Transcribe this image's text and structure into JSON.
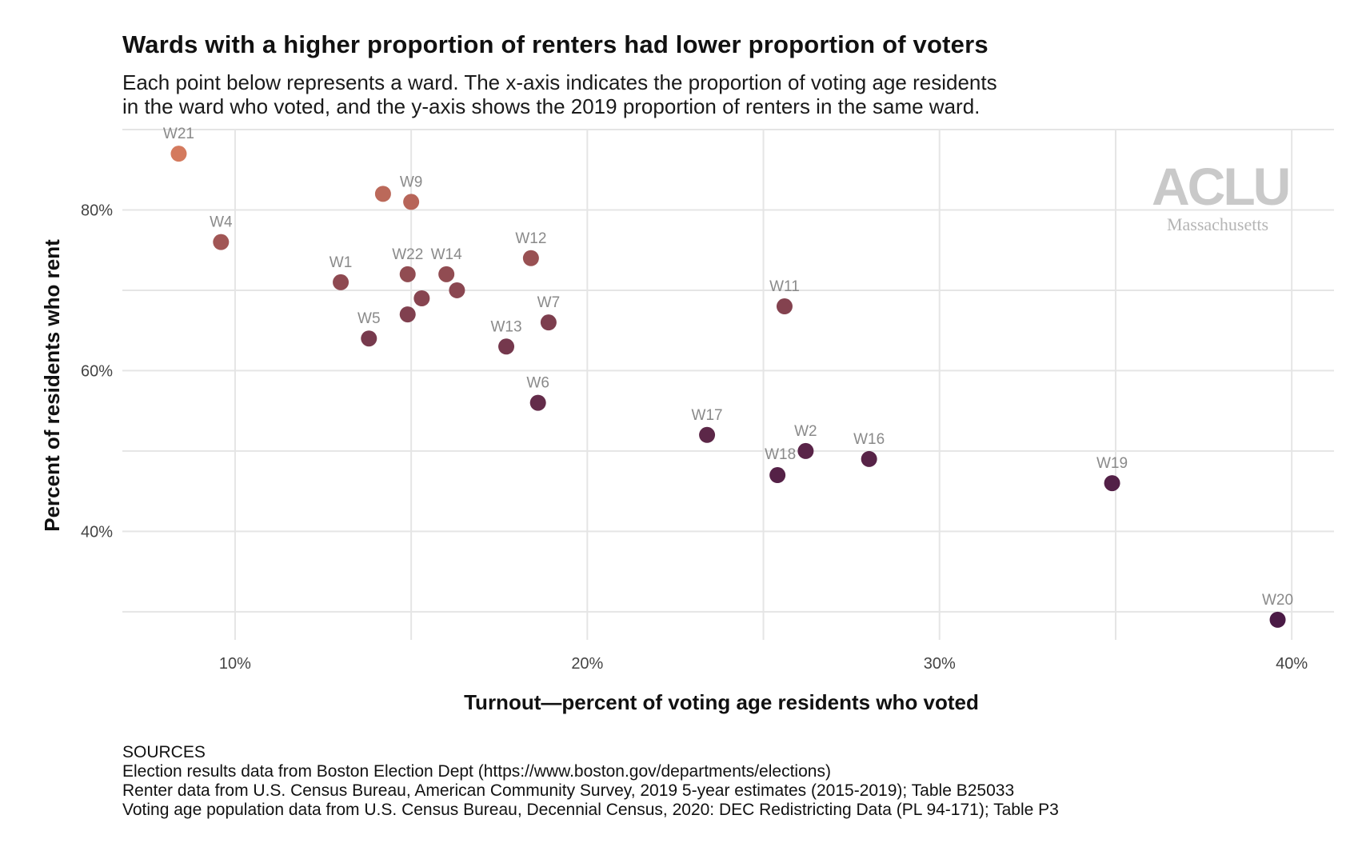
{
  "title": "Wards with a higher proportion of renters had lower proportion of voters",
  "subtitle_lines": [
    "Each point below represents a ward. The x-axis indicates the proportion of voting age residents",
    "in the ward who voted, and the y-axis shows the 2019 proportion of renters in the same ward."
  ],
  "logo": {
    "mark": "ACLU",
    "state": "Massachusetts"
  },
  "sources": {
    "heading": "SOURCES",
    "lines": [
      "Election results data from Boston Election Dept (https://www.boston.gov/departments/elections)",
      "Renter data from U.S. Census Bureau, American Community Survey, 2019 5-year estimates (2015-2019); Table B25033",
      "Voting age population data from U.S. Census Bureau, Decennial Census, 2020: DEC Redistricting Data (PL 94-171); Table P3"
    ]
  },
  "colors": {
    "low_renters": "#4a1a45",
    "high_renters": "#d47a5e",
    "grid": "#e5e5e5",
    "label": "#8a8a8a"
  },
  "chart_data": {
    "type": "scatter",
    "xlabel": "Turnout—percent of voting age residents who voted",
    "ylabel": "Percent of residents who rent",
    "xlim": [
      6.8,
      41.2
    ],
    "ylim": [
      26.5,
      90
    ],
    "x_ticks": [
      10,
      20,
      30,
      40
    ],
    "x_tick_labels": [
      "10%",
      "20%",
      "30%",
      "40%"
    ],
    "y_ticks": [
      40,
      60,
      80
    ],
    "y_tick_labels": [
      "40%",
      "60%",
      "80%"
    ],
    "grid": true,
    "points": [
      {
        "label": "W21",
        "x": 8.4,
        "y": 87
      },
      {
        "label": "W4",
        "x": 9.6,
        "y": 76
      },
      {
        "label": "",
        "x": 14.2,
        "y": 82
      },
      {
        "label": "W9",
        "x": 15.0,
        "y": 81
      },
      {
        "label": "W1",
        "x": 13.0,
        "y": 71
      },
      {
        "label": "W22",
        "x": 14.9,
        "y": 72
      },
      {
        "label": "W14",
        "x": 16.0,
        "y": 72
      },
      {
        "label": "",
        "x": 15.3,
        "y": 69
      },
      {
        "label": "",
        "x": 16.3,
        "y": 70
      },
      {
        "label": "",
        "x": 14.9,
        "y": 67
      },
      {
        "label": "W5",
        "x": 13.8,
        "y": 64
      },
      {
        "label": "W12",
        "x": 18.4,
        "y": 74
      },
      {
        "label": "W7",
        "x": 18.9,
        "y": 66
      },
      {
        "label": "W13",
        "x": 17.7,
        "y": 63
      },
      {
        "label": "W6",
        "x": 18.6,
        "y": 56
      },
      {
        "label": "W11",
        "x": 25.6,
        "y": 68
      },
      {
        "label": "W17",
        "x": 23.4,
        "y": 52
      },
      {
        "label": "W2",
        "x": 26.2,
        "y": 50
      },
      {
        "label": "W18",
        "x": 25.4,
        "y": 47
      },
      {
        "label": "W16",
        "x": 28.0,
        "y": 49
      },
      {
        "label": "W19",
        "x": 34.9,
        "y": 46
      },
      {
        "label": "W20",
        "x": 39.6,
        "y": 29
      }
    ]
  }
}
